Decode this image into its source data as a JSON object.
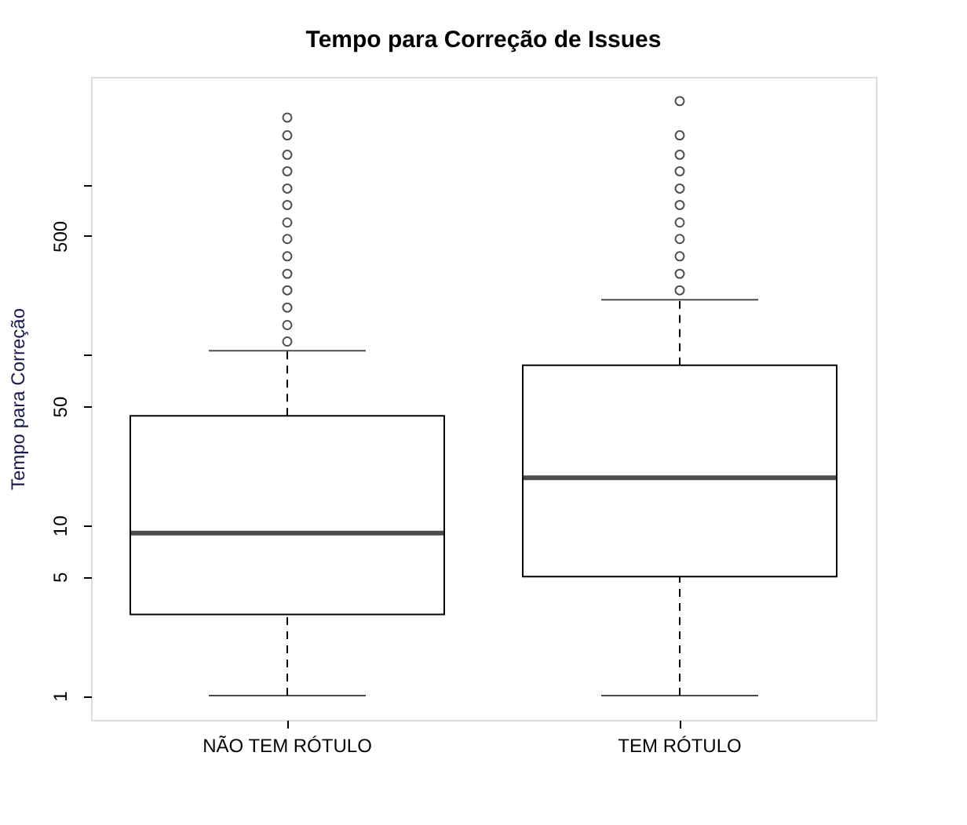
{
  "chart_data": {
    "type": "box",
    "title": "Tempo para Correção de Issues",
    "ylabel": "Tempo para Correção",
    "categories": [
      "NÃO TEM RÓTULO",
      "TEM RÓTULO"
    ],
    "boxes": [
      {
        "low": 1,
        "q1": 3,
        "median": 9,
        "q3": 44,
        "high": 106,
        "outliers": [
          120,
          150,
          190,
          240,
          300,
          380,
          480,
          600,
          760,
          950,
          1200,
          1500,
          1950,
          2480
        ]
      },
      {
        "low": 1,
        "q1": 5,
        "median": 19,
        "q3": 87,
        "high": 211,
        "outliers": [
          240,
          300,
          380,
          480,
          600,
          760,
          950,
          1200,
          1500,
          1950,
          3100
        ]
      }
    ],
    "log": true,
    "ylim": [
      0.72,
      4300
    ],
    "yticks": [
      1,
      5,
      10,
      50,
      {
        "value": 100,
        "label": null
      },
      500,
      {
        "value": 1000,
        "label": null
      }
    ],
    "grid": false
  }
}
